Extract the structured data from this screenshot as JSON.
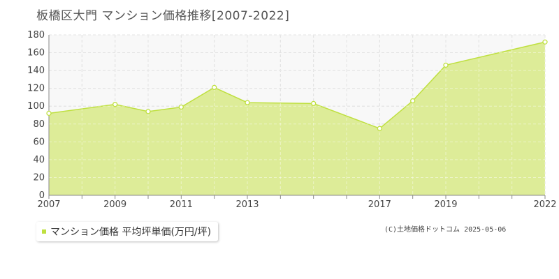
{
  "chart_data": {
    "type": "area",
    "title": "板橋区大門 マンション価格推移[2007-2022]",
    "x": [
      2007,
      2008,
      2009,
      2010,
      2011,
      2012,
      2013,
      2014,
      2015,
      2016,
      2017,
      2018,
      2019,
      2020,
      2021,
      2022
    ],
    "x_tick_labels": [
      "2007",
      "2009",
      "2011",
      "2013",
      "2017",
      "2019",
      "2022"
    ],
    "x_tick_values": [
      2007,
      2009,
      2011,
      2013,
      2017,
      2019,
      2022
    ],
    "xlim": [
      2007,
      2022
    ],
    "ylim": [
      0,
      180
    ],
    "y_ticks": [
      0,
      20,
      40,
      60,
      80,
      100,
      120,
      140,
      160,
      180
    ],
    "series": [
      {
        "name": "マンション価格 平均坪単価(万円/坪)",
        "points": [
          {
            "x": 2007,
            "y": 92
          },
          {
            "x": 2009,
            "y": 102
          },
          {
            "x": 2010,
            "y": 94
          },
          {
            "x": 2011,
            "y": 99
          },
          {
            "x": 2012,
            "y": 121
          },
          {
            "x": 2013,
            "y": 104
          },
          {
            "x": 2015,
            "y": 103
          },
          {
            "x": 2017,
            "y": 75
          },
          {
            "x": 2018,
            "y": 106
          },
          {
            "x": 2019,
            "y": 146
          },
          {
            "x": 2022,
            "y": 172
          }
        ],
        "line_color": "#bfe040",
        "fill_color": "#ddec98"
      }
    ],
    "grid": true,
    "legend_position": "bottom-left"
  },
  "legend": {
    "label": "マンション価格 平均坪単価(万円/坪)"
  },
  "credit": "(C)土地価格ドットコム 2025-05-06",
  "colors": {
    "plot_bg": "#f8f8f8",
    "grid": "#cccccc",
    "axis_text": "#444444"
  }
}
